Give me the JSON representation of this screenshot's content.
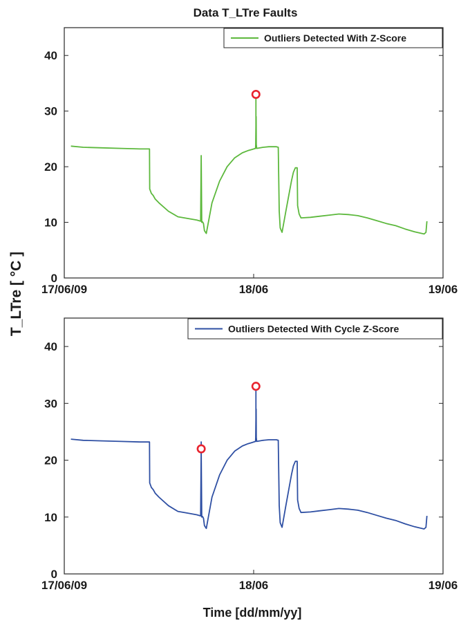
{
  "figure": {
    "title": "Data T_LTre Faults",
    "ylabel": "T_LTre [ °C ]",
    "xlabel": "Time [dd/mm/yy]"
  },
  "chart_data": [
    {
      "type": "line",
      "title": "Data T_LTre Faults",
      "ylabel": "T_LTre [ °C ]",
      "xlabel": "",
      "ylim": [
        0,
        45
      ],
      "yticks": [
        0,
        10,
        20,
        30,
        40
      ],
      "xlim": [
        0,
        2
      ],
      "xticks": [
        0,
        1,
        2
      ],
      "xticklabels": [
        "17/06/09",
        "18/06",
        "19/06"
      ],
      "legend": "top-right",
      "grid": false,
      "series": [
        {
          "name": "Outliers Detected With Z-Score",
          "color": "#5cb83c",
          "x": [
            0.035,
            0.1,
            0.2,
            0.3,
            0.4,
            0.45,
            0.451,
            0.46,
            0.47,
            0.48,
            0.5,
            0.55,
            0.6,
            0.65,
            0.7,
            0.72,
            0.723,
            0.726,
            0.73,
            0.735,
            0.74,
            0.75,
            0.78,
            0.82,
            0.86,
            0.9,
            0.94,
            0.97,
            0.99,
            1.01,
            1.011,
            1.013,
            1.014,
            1.016,
            1.05,
            1.08,
            1.1,
            1.12,
            1.13,
            1.135,
            1.14,
            1.15,
            1.17,
            1.19,
            1.2,
            1.21,
            1.22,
            1.23,
            1.232,
            1.24,
            1.25,
            1.3,
            1.35,
            1.4,
            1.45,
            1.5,
            1.55,
            1.6,
            1.65,
            1.7,
            1.75,
            1.8,
            1.85,
            1.9,
            1.91,
            1.915
          ],
          "y": [
            23.7,
            23.5,
            23.4,
            23.3,
            23.2,
            23.2,
            16,
            15.2,
            14.8,
            14.2,
            13.5,
            12,
            11,
            10.7,
            10.4,
            10.2,
            22,
            10,
            10.1,
            9.8,
            8.5,
            8,
            13.5,
            17.4,
            20,
            21.6,
            22.5,
            22.9,
            23.1,
            23.3,
            24,
            29,
            24,
            23.3,
            23.5,
            23.6,
            23.6,
            23.6,
            23.5,
            12,
            9,
            8.2,
            12,
            15.7,
            17.5,
            19,
            19.8,
            19.8,
            13,
            11.5,
            10.8,
            10.9,
            11.1,
            11.3,
            11.5,
            11.4,
            11.2,
            10.8,
            10.3,
            9.8,
            9.4,
            8.8,
            8.3,
            7.9,
            8.2,
            10.2
          ]
        }
      ],
      "outliers": [
        {
          "x": 1.012,
          "y": 33
        }
      ]
    },
    {
      "type": "line",
      "title": "",
      "ylabel": "T_LTre [ °C ]",
      "xlabel": "Time [dd/mm/yy]",
      "ylim": [
        0,
        45
      ],
      "yticks": [
        0,
        10,
        20,
        30,
        40
      ],
      "xlim": [
        0,
        2
      ],
      "xticks": [
        0,
        1,
        2
      ],
      "xticklabels": [
        "17/06/09",
        "18/06",
        "19/06"
      ],
      "legend": "top-right",
      "grid": false,
      "series": [
        {
          "name": "Outliers Detected With Cycle Z-Score",
          "color": "#2e4fa3",
          "x": [
            0.035,
            0.1,
            0.2,
            0.3,
            0.4,
            0.45,
            0.451,
            0.46,
            0.47,
            0.48,
            0.5,
            0.55,
            0.6,
            0.65,
            0.7,
            0.72,
            0.723,
            0.726,
            0.73,
            0.735,
            0.74,
            0.75,
            0.78,
            0.82,
            0.86,
            0.9,
            0.94,
            0.97,
            0.99,
            1.01,
            1.011,
            1.013,
            1.014,
            1.016,
            1.05,
            1.08,
            1.1,
            1.12,
            1.13,
            1.135,
            1.14,
            1.15,
            1.17,
            1.19,
            1.2,
            1.21,
            1.22,
            1.23,
            1.232,
            1.24,
            1.25,
            1.3,
            1.35,
            1.4,
            1.45,
            1.5,
            1.55,
            1.6,
            1.65,
            1.7,
            1.75,
            1.8,
            1.85,
            1.9,
            1.91,
            1.915
          ],
          "y": [
            23.7,
            23.5,
            23.4,
            23.3,
            23.2,
            23.2,
            16,
            15.2,
            14.8,
            14.2,
            13.5,
            12,
            11,
            10.7,
            10.4,
            10.2,
            22,
            10,
            10.1,
            9.8,
            8.5,
            8,
            13.5,
            17.4,
            20,
            21.6,
            22.5,
            22.9,
            23.1,
            23.3,
            24,
            29,
            24,
            23.3,
            23.5,
            23.6,
            23.6,
            23.6,
            23.5,
            12,
            9,
            8.2,
            12,
            15.7,
            17.5,
            19,
            19.8,
            19.8,
            13,
            11.5,
            10.8,
            10.9,
            11.1,
            11.3,
            11.5,
            11.4,
            11.2,
            10.8,
            10.3,
            9.8,
            9.4,
            8.8,
            8.3,
            7.9,
            8.2,
            10.2
          ]
        }
      ],
      "outliers": [
        {
          "x": 0.723,
          "y": 22
        },
        {
          "x": 1.012,
          "y": 33
        }
      ]
    }
  ]
}
